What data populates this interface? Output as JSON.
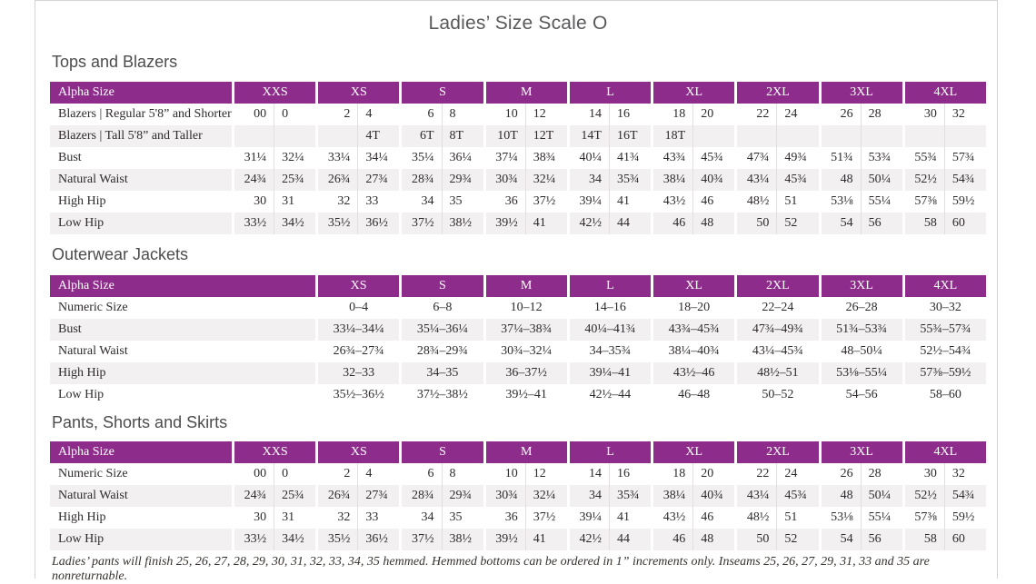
{
  "page": {
    "title": "Ladies’ Size Scale O",
    "footnote": "Ladies’ pants will finish 25, 26, 27, 28, 29, 30, 31, 32, 33, 34, 35 hemmed. Hemmed bottoms can be ordered in 1” increments only. Inseams 25, 26, 27, 29, 31, 33 and 35 are nonreturnable."
  },
  "colors": {
    "header_purple": "#8e2c8c",
    "alt_row_gray": "#f2f0f1",
    "page_edge_gray": "#d7d3d5"
  },
  "tables": [
    {
      "title": "Tops and Blazers",
      "paired": true,
      "header": {
        "label": "Alpha Size",
        "sizes": [
          "XXS",
          "XS",
          "S",
          "M",
          "L",
          "XL",
          "2XL",
          "3XL",
          "4XL"
        ]
      },
      "rows": [
        {
          "label": "Blazers | Regular 5'8” and Shorter",
          "values": [
            "00",
            "0",
            "2",
            "4",
            "6",
            "8",
            "10",
            "12",
            "14",
            "16",
            "18",
            "20",
            "22",
            "24",
            "26",
            "28",
            "30",
            "32"
          ]
        },
        {
          "label": "Blazers | Tall 5'8” and Taller",
          "values": [
            "",
            "",
            "",
            "4T",
            "6T",
            "8T",
            "10T",
            "12T",
            "14T",
            "16T",
            "18T",
            "",
            "",
            "",
            "",
            "",
            "",
            ""
          ]
        },
        {
          "label": "Bust",
          "values": [
            "31¼",
            "32¼",
            "33¼",
            "34¼",
            "35¼",
            "36¼",
            "37¼",
            "38¾",
            "40¼",
            "41¾",
            "43¾",
            "45¾",
            "47¾",
            "49¾",
            "51¾",
            "53¾",
            "55¾",
            "57¾"
          ]
        },
        {
          "label": "Natural Waist",
          "values": [
            "24¾",
            "25¾",
            "26¾",
            "27¾",
            "28¾",
            "29¾",
            "30¾",
            "32¼",
            "34",
            "35¾",
            "38¼",
            "40¾",
            "43¼",
            "45¾",
            "48",
            "50¼",
            "52½",
            "54¾"
          ]
        },
        {
          "label": "High Hip",
          "values": [
            "30",
            "31",
            "32",
            "33",
            "34",
            "35",
            "36",
            "37½",
            "39¼",
            "41",
            "43½",
            "46",
            "48½",
            "51",
            "53⅛",
            "55¼",
            "57⅜",
            "59½"
          ]
        },
        {
          "label": "Low Hip",
          "values": [
            "33½",
            "34½",
            "35½",
            "36½",
            "37½",
            "38½",
            "39½",
            "41",
            "42½",
            "44",
            "46",
            "48",
            "50",
            "52",
            "54",
            "56",
            "58",
            "60"
          ]
        }
      ]
    },
    {
      "title": "Outerwear Jackets",
      "paired": false,
      "header": {
        "label": "Alpha Size",
        "sizes": [
          "XS",
          "S",
          "M",
          "L",
          "XL",
          "2XL",
          "3XL",
          "4XL"
        ]
      },
      "rows": [
        {
          "label": "Numeric Size",
          "values": [
            "0–4",
            "6–8",
            "10–12",
            "14–16",
            "18–20",
            "22–24",
            "26–28",
            "30–32"
          ]
        },
        {
          "label": "Bust",
          "values": [
            "33¼–34¼",
            "35¼–36¼",
            "37¼–38¾",
            "40¼–41¾",
            "43¾–45¾",
            "47¾–49¾",
            "51¾–53¾",
            "55¾–57¾"
          ]
        },
        {
          "label": "Natural Waist",
          "values": [
            "26¾–27¾",
            "28¾–29¾",
            "30¾–32¼",
            "34–35¾",
            "38¼–40¾",
            "43¼–45¾",
            "48–50¼",
            "52½–54¾"
          ]
        },
        {
          "label": "High Hip",
          "values": [
            "32–33",
            "34–35",
            "36–37½",
            "39¼–41",
            "43½–46",
            "48½–51",
            "53⅛–55¼",
            "57⅜–59½"
          ]
        },
        {
          "label": "Low Hip",
          "values": [
            "35½–36½",
            "37½–38½",
            "39½–41",
            "42½–44",
            "46–48",
            "50–52",
            "54–56",
            "58–60"
          ]
        }
      ]
    },
    {
      "title": "Pants, Shorts and Skirts",
      "paired": true,
      "header": {
        "label": "Alpha Size",
        "sizes": [
          "XXS",
          "XS",
          "S",
          "M",
          "L",
          "XL",
          "2XL",
          "3XL",
          "4XL"
        ]
      },
      "rows": [
        {
          "label": "Numeric Size",
          "values": [
            "00",
            "0",
            "2",
            "4",
            "6",
            "8",
            "10",
            "12",
            "14",
            "16",
            "18",
            "20",
            "22",
            "24",
            "26",
            "28",
            "30",
            "32"
          ]
        },
        {
          "label": "Natural Waist",
          "values": [
            "24¾",
            "25¾",
            "26¾",
            "27¾",
            "28¾",
            "29¾",
            "30¾",
            "32¼",
            "34",
            "35¾",
            "38¼",
            "40¾",
            "43¼",
            "45¾",
            "48",
            "50¼",
            "52½",
            "54¾"
          ]
        },
        {
          "label": "High Hip",
          "values": [
            "30",
            "31",
            "32",
            "33",
            "34",
            "35",
            "36",
            "37½",
            "39¼",
            "41",
            "43½",
            "46",
            "48½",
            "51",
            "53⅛",
            "55¼",
            "57⅜",
            "59½"
          ]
        },
        {
          "label": "Low Hip",
          "values": [
            "33½",
            "34½",
            "35½",
            "36½",
            "37½",
            "38½",
            "39½",
            "41",
            "42½",
            "44",
            "46",
            "48",
            "50",
            "52",
            "54",
            "56",
            "58",
            "60"
          ]
        }
      ]
    }
  ]
}
